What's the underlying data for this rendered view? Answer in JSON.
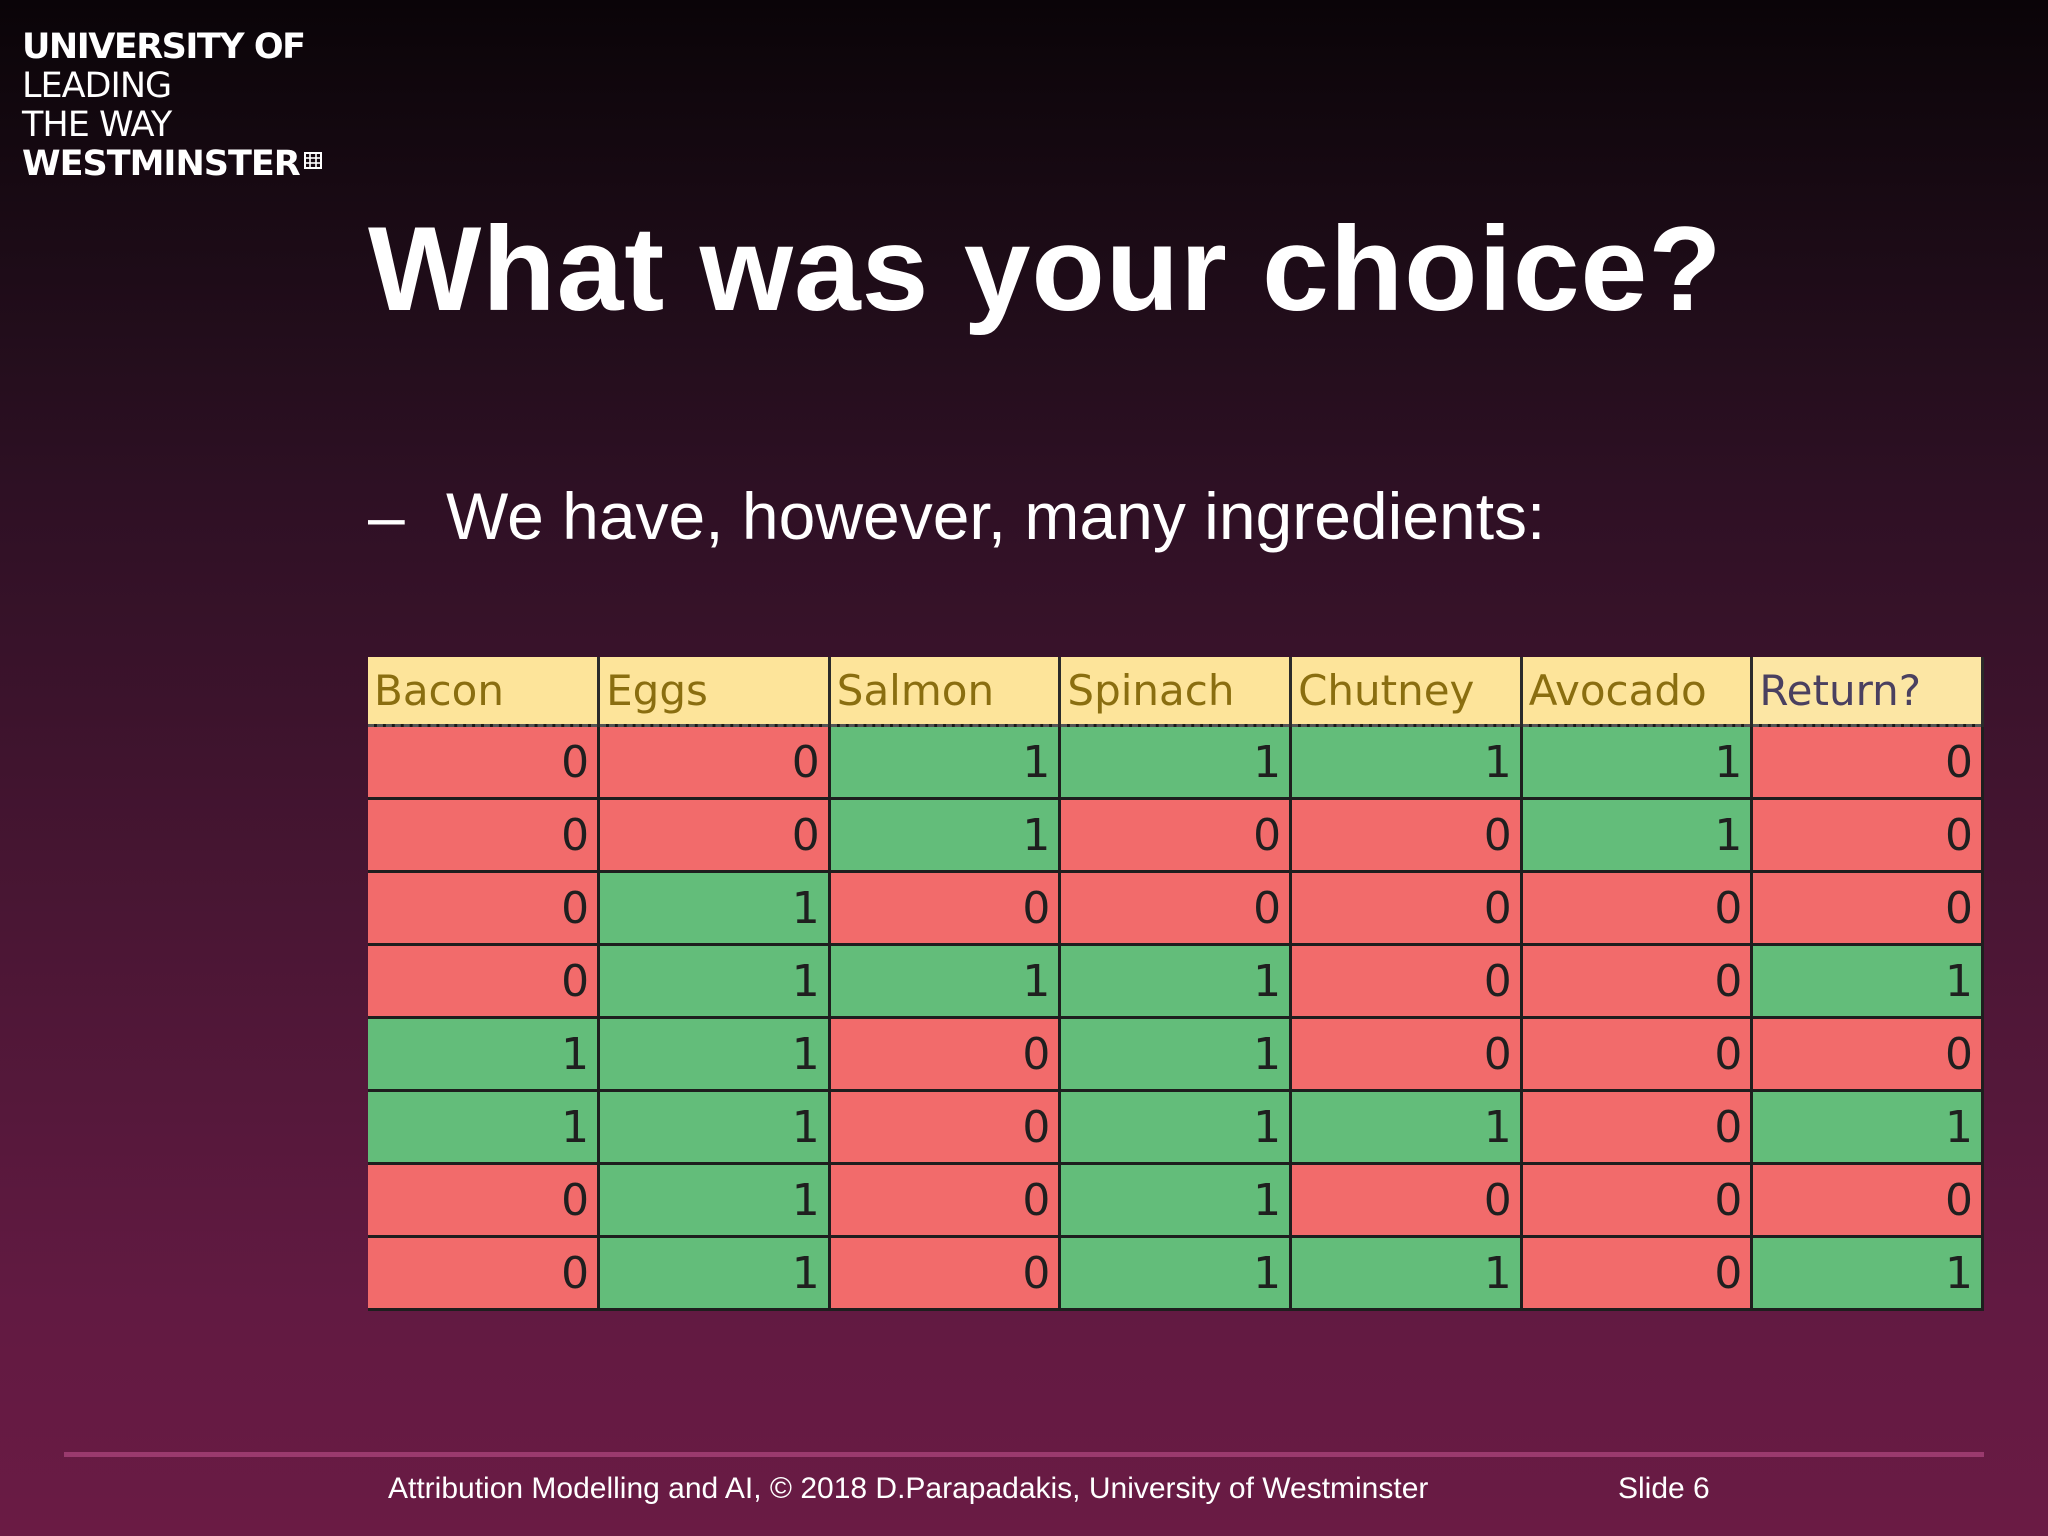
{
  "logo": {
    "line1": "UNIVERSITY OF",
    "line2": "LEADING",
    "line3": "THE WAY",
    "line4": "WESTMINSTER",
    "icon": "portcullis-icon"
  },
  "title": "What was your choice?",
  "bullet": {
    "dash": "–",
    "text": "We have, however, many ingredients:"
  },
  "table": {
    "headers": [
      "Bacon",
      "Eggs",
      "Salmon",
      "Spinach",
      "Chutney",
      "Avocado",
      "Return?"
    ],
    "rows": [
      [
        0,
        0,
        1,
        1,
        1,
        1,
        0
      ],
      [
        0,
        0,
        1,
        0,
        0,
        1,
        0
      ],
      [
        0,
        1,
        0,
        0,
        0,
        0,
        0
      ],
      [
        0,
        1,
        1,
        1,
        0,
        0,
        1
      ],
      [
        1,
        1,
        0,
        1,
        0,
        0,
        0
      ],
      [
        1,
        1,
        0,
        1,
        1,
        0,
        1
      ],
      [
        0,
        1,
        0,
        1,
        0,
        0,
        0
      ],
      [
        0,
        1,
        0,
        1,
        1,
        0,
        1
      ]
    ],
    "colors": {
      "zero": "#f26b6b",
      "one": "#63bd7a",
      "header": "#fde49a"
    }
  },
  "footer": {
    "text": "Attribution Modelling and AI, © 2018 D.Parapadakis, University of Westminster",
    "slide": "Slide 6"
  }
}
